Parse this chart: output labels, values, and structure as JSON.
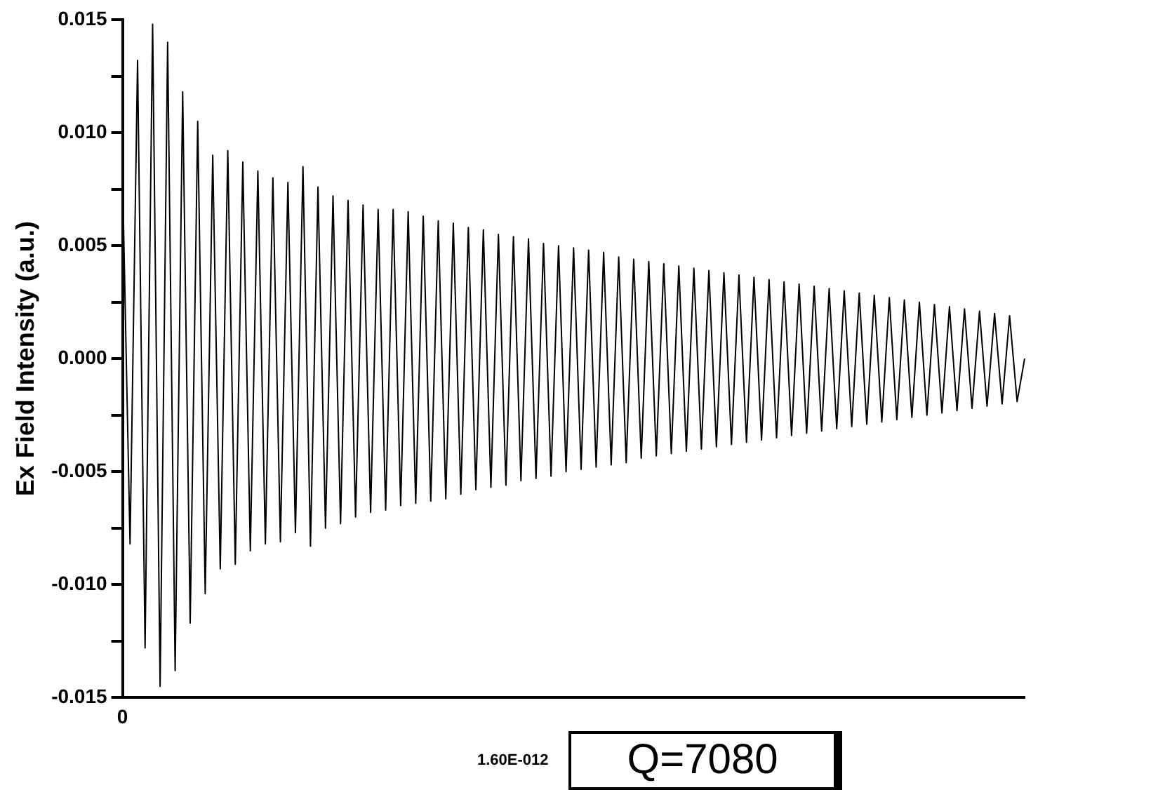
{
  "chart_data": {
    "type": "line",
    "ylabel": "Ex Field Intensity (a.u.)",
    "categories": [
      "0",
      null,
      null,
      null,
      null,
      null,
      null,
      null,
      null,
      null,
      null,
      null,
      null,
      null,
      null,
      null,
      null,
      null,
      null,
      null,
      null,
      null,
      null,
      null,
      null,
      null,
      null,
      null,
      null,
      null,
      null,
      null,
      null,
      null,
      null,
      null,
      null,
      null,
      null,
      null,
      null,
      null,
      null,
      null,
      null,
      null,
      null,
      null,
      null,
      null,
      null,
      null,
      null,
      null,
      null,
      null,
      null,
      null,
      null,
      null,
      null,
      null,
      null,
      null,
      null,
      null,
      null,
      null,
      null,
      null,
      null,
      null,
      null,
      null,
      null,
      null,
      null,
      null,
      null,
      null,
      null,
      null,
      null,
      null,
      null,
      null,
      null,
      null,
      null,
      null,
      null,
      null,
      null,
      null,
      null,
      null,
      null,
      null,
      null,
      null,
      null,
      null,
      null,
      null,
      null,
      null,
      null,
      null,
      null,
      null,
      null,
      null,
      null,
      null,
      null,
      null,
      null,
      null,
      null,
      null,
      null
    ],
    "series": [
      {
        "color": "#000000",
        "values": [
          0.0081,
          -0.0082,
          0.0132,
          -0.0128,
          0.0148,
          -0.0145,
          0.014,
          -0.0138,
          0.0118,
          -0.0117,
          0.0105,
          -0.0104,
          0.009,
          -0.0093,
          0.0092,
          -0.0091,
          0.0087,
          -0.0085,
          0.0083,
          -0.0082,
          0.008,
          -0.0081,
          0.0078,
          -0.0077,
          0.0085,
          -0.0083,
          0.0076,
          -0.0075,
          0.0072,
          -0.0073,
          0.007,
          -0.007,
          0.0068,
          -0.0068,
          0.0066,
          -0.0067,
          0.0066,
          -0.0065,
          0.0065,
          -0.0064,
          0.0063,
          -0.0063,
          0.0061,
          -0.0062,
          0.006,
          -0.006,
          0.0058,
          -0.0058,
          0.0057,
          -0.0057,
          0.0055,
          -0.0056,
          0.0054,
          -0.0054,
          0.0053,
          -0.0053,
          0.0051,
          -0.0052,
          0.005,
          -0.005,
          0.0049,
          -0.0049,
          0.0048,
          -0.0048,
          0.0047,
          -0.0047,
          0.0045,
          -0.0046,
          0.0044,
          -0.0044,
          0.0043,
          -0.0043,
          0.0042,
          -0.0042,
          0.0041,
          -0.0041,
          0.004,
          -0.004,
          0.0039,
          -0.0039,
          0.0038,
          -0.0038,
          0.0037,
          -0.0037,
          0.0036,
          -0.0036,
          0.0035,
          -0.0035,
          0.0034,
          -0.0034,
          0.0033,
          -0.0033,
          0.0032,
          -0.0032,
          0.0031,
          -0.0031,
          0.003,
          -0.003,
          0.0029,
          -0.0029,
          0.0028,
          -0.0028,
          0.0027,
          -0.0027,
          0.0026,
          -0.0026,
          0.0025,
          -0.0025,
          0.0024,
          -0.0024,
          0.0023,
          -0.0023,
          0.0022,
          -0.0022,
          0.0021,
          -0.0021,
          0.002,
          -0.002,
          0.0019,
          -0.0019,
          0
        ]
      }
    ],
    "ylim": [
      -0.015,
      0.015
    ],
    "yticks": [
      {
        "value": -0.015,
        "label": "-0.015"
      },
      {
        "value": -0.0125,
        "label": null
      },
      {
        "value": -0.01,
        "label": "-0.010"
      },
      {
        "value": -0.0075,
        "label": null
      },
      {
        "value": -0.005,
        "label": "-0.005"
      },
      {
        "value": -0.0025,
        "label": null
      },
      {
        "value": 0,
        "label": "0.000"
      },
      {
        "value": 0.0025,
        "label": null
      },
      {
        "value": 0.005,
        "label": "0.005"
      },
      {
        "value": 0.0075,
        "label": null
      },
      {
        "value": 0.01,
        "label": "0.010"
      },
      {
        "value": 0.0125,
        "label": null
      },
      {
        "value": 0.015,
        "label": "0.015"
      }
    ],
    "grid": false,
    "legend": false,
    "marker": "none",
    "line_style": "solid",
    "annotations": [
      "1.60E-012",
      "Q=7080"
    ]
  }
}
